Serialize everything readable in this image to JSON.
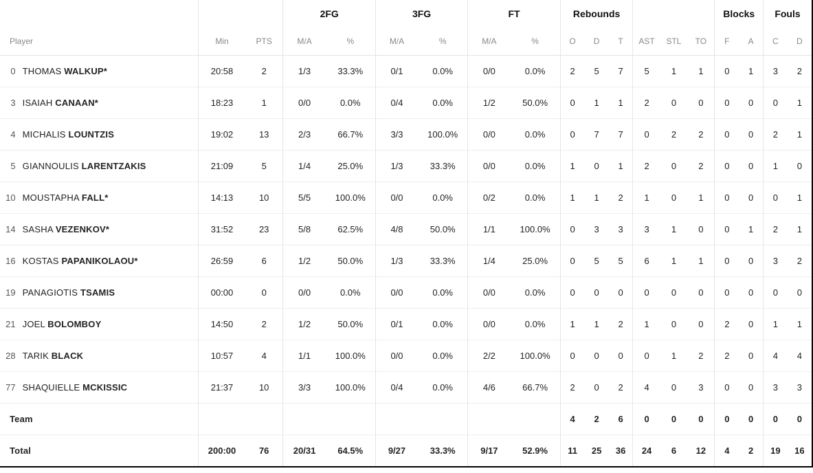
{
  "table": {
    "type": "table",
    "background_color": "#ffffff",
    "border_color": "#e5e5e5",
    "text_color": "#222222",
    "header_text_color": "#888888",
    "font_size_body": 13,
    "font_size_header": 12,
    "groups": {
      "fg2": "2FG",
      "fg3": "3FG",
      "ft": "FT",
      "reb": "Rebounds",
      "blk": "Blocks",
      "fls": "Fouls"
    },
    "columns": {
      "player": "Player",
      "min": "Min",
      "pts": "PTS",
      "ma": "M/A",
      "pct": "%",
      "o": "O",
      "d": "D",
      "t": "T",
      "ast": "AST",
      "stl": "STL",
      "to": "TO",
      "bf": "F",
      "ba": "A",
      "fc": "C",
      "fd": "D"
    },
    "rows": [
      {
        "num": "0",
        "first": "THOMAS",
        "last": "WALKUP",
        "starter": true,
        "min": "20:58",
        "pts": "2",
        "fg2_ma": "1/3",
        "fg2_pct": "33.3%",
        "fg3_ma": "0/1",
        "fg3_pct": "0.0%",
        "ft_ma": "0/0",
        "ft_pct": "0.0%",
        "oreb": "2",
        "dreb": "5",
        "treb": "7",
        "ast": "5",
        "stl": "1",
        "to": "1",
        "blk_f": "0",
        "blk_a": "1",
        "fl_c": "3",
        "fl_d": "2"
      },
      {
        "num": "3",
        "first": "ISAIAH",
        "last": "CANAAN",
        "starter": true,
        "min": "18:23",
        "pts": "1",
        "fg2_ma": "0/0",
        "fg2_pct": "0.0%",
        "fg3_ma": "0/4",
        "fg3_pct": "0.0%",
        "ft_ma": "1/2",
        "ft_pct": "50.0%",
        "oreb": "0",
        "dreb": "1",
        "treb": "1",
        "ast": "2",
        "stl": "0",
        "to": "0",
        "blk_f": "0",
        "blk_a": "0",
        "fl_c": "0",
        "fl_d": "1"
      },
      {
        "num": "4",
        "first": "MICHALIS",
        "last": "LOUNTZIS",
        "starter": false,
        "min": "19:02",
        "pts": "13",
        "fg2_ma": "2/3",
        "fg2_pct": "66.7%",
        "fg3_ma": "3/3",
        "fg3_pct": "100.0%",
        "ft_ma": "0/0",
        "ft_pct": "0.0%",
        "oreb": "0",
        "dreb": "7",
        "treb": "7",
        "ast": "0",
        "stl": "2",
        "to": "2",
        "blk_f": "0",
        "blk_a": "0",
        "fl_c": "2",
        "fl_d": "1"
      },
      {
        "num": "5",
        "first": "GIANNOULIS",
        "last": "LARENTZAKIS",
        "starter": false,
        "min": "21:09",
        "pts": "5",
        "fg2_ma": "1/4",
        "fg2_pct": "25.0%",
        "fg3_ma": "1/3",
        "fg3_pct": "33.3%",
        "ft_ma": "0/0",
        "ft_pct": "0.0%",
        "oreb": "1",
        "dreb": "0",
        "treb": "1",
        "ast": "2",
        "stl": "0",
        "to": "2",
        "blk_f": "0",
        "blk_a": "0",
        "fl_c": "1",
        "fl_d": "0"
      },
      {
        "num": "10",
        "first": "MOUSTAPHA",
        "last": "FALL",
        "starter": true,
        "min": "14:13",
        "pts": "10",
        "fg2_ma": "5/5",
        "fg2_pct": "100.0%",
        "fg3_ma": "0/0",
        "fg3_pct": "0.0%",
        "ft_ma": "0/2",
        "ft_pct": "0.0%",
        "oreb": "1",
        "dreb": "1",
        "treb": "2",
        "ast": "1",
        "stl": "0",
        "to": "1",
        "blk_f": "0",
        "blk_a": "0",
        "fl_c": "0",
        "fl_d": "1"
      },
      {
        "num": "14",
        "first": "SASHA",
        "last": "VEZENKOV",
        "starter": true,
        "min": "31:52",
        "pts": "23",
        "fg2_ma": "5/8",
        "fg2_pct": "62.5%",
        "fg3_ma": "4/8",
        "fg3_pct": "50.0%",
        "ft_ma": "1/1",
        "ft_pct": "100.0%",
        "oreb": "0",
        "dreb": "3",
        "treb": "3",
        "ast": "3",
        "stl": "1",
        "to": "0",
        "blk_f": "0",
        "blk_a": "1",
        "fl_c": "2",
        "fl_d": "1"
      },
      {
        "num": "16",
        "first": "KOSTAS",
        "last": "PAPANIKOLAOU",
        "starter": true,
        "min": "26:59",
        "pts": "6",
        "fg2_ma": "1/2",
        "fg2_pct": "50.0%",
        "fg3_ma": "1/3",
        "fg3_pct": "33.3%",
        "ft_ma": "1/4",
        "ft_pct": "25.0%",
        "oreb": "0",
        "dreb": "5",
        "treb": "5",
        "ast": "6",
        "stl": "1",
        "to": "1",
        "blk_f": "0",
        "blk_a": "0",
        "fl_c": "3",
        "fl_d": "2"
      },
      {
        "num": "19",
        "first": "PANAGIOTIS",
        "last": "TSAMIS",
        "starter": false,
        "min": "00:00",
        "pts": "0",
        "fg2_ma": "0/0",
        "fg2_pct": "0.0%",
        "fg3_ma": "0/0",
        "fg3_pct": "0.0%",
        "ft_ma": "0/0",
        "ft_pct": "0.0%",
        "oreb": "0",
        "dreb": "0",
        "treb": "0",
        "ast": "0",
        "stl": "0",
        "to": "0",
        "blk_f": "0",
        "blk_a": "0",
        "fl_c": "0",
        "fl_d": "0"
      },
      {
        "num": "21",
        "first": "JOEL",
        "last": "BOLOMBOY",
        "starter": false,
        "min": "14:50",
        "pts": "2",
        "fg2_ma": "1/2",
        "fg2_pct": "50.0%",
        "fg3_ma": "0/1",
        "fg3_pct": "0.0%",
        "ft_ma": "0/0",
        "ft_pct": "0.0%",
        "oreb": "1",
        "dreb": "1",
        "treb": "2",
        "ast": "1",
        "stl": "0",
        "to": "0",
        "blk_f": "2",
        "blk_a": "0",
        "fl_c": "1",
        "fl_d": "1"
      },
      {
        "num": "28",
        "first": "TARIK",
        "last": "BLACK",
        "starter": false,
        "min": "10:57",
        "pts": "4",
        "fg2_ma": "1/1",
        "fg2_pct": "100.0%",
        "fg3_ma": "0/0",
        "fg3_pct": "0.0%",
        "ft_ma": "2/2",
        "ft_pct": "100.0%",
        "oreb": "0",
        "dreb": "0",
        "treb": "0",
        "ast": "0",
        "stl": "1",
        "to": "2",
        "blk_f": "2",
        "blk_a": "0",
        "fl_c": "4",
        "fl_d": "4"
      },
      {
        "num": "77",
        "first": "SHAQUIELLE",
        "last": "MCKISSIC",
        "starter": false,
        "min": "21:37",
        "pts": "10",
        "fg2_ma": "3/3",
        "fg2_pct": "100.0%",
        "fg3_ma": "0/4",
        "fg3_pct": "0.0%",
        "ft_ma": "4/6",
        "ft_pct": "66.7%",
        "oreb": "2",
        "dreb": "0",
        "treb": "2",
        "ast": "4",
        "stl": "0",
        "to": "3",
        "blk_f": "0",
        "blk_a": "0",
        "fl_c": "3",
        "fl_d": "3"
      }
    ],
    "team_row": {
      "label": "Team",
      "oreb": "4",
      "dreb": "2",
      "treb": "6",
      "ast": "0",
      "stl": "0",
      "to": "0",
      "blk_f": "0",
      "blk_a": "0",
      "fl_c": "0",
      "fl_d": "0"
    },
    "total_row": {
      "label": "Total",
      "min": "200:00",
      "pts": "76",
      "fg2_ma": "20/31",
      "fg2_pct": "64.5%",
      "fg3_ma": "9/27",
      "fg3_pct": "33.3%",
      "ft_ma": "9/17",
      "ft_pct": "52.9%",
      "oreb": "11",
      "dreb": "25",
      "treb": "36",
      "ast": "24",
      "stl": "6",
      "to": "12",
      "blk_f": "4",
      "blk_a": "2",
      "fl_c": "19",
      "fl_d": "16"
    }
  }
}
